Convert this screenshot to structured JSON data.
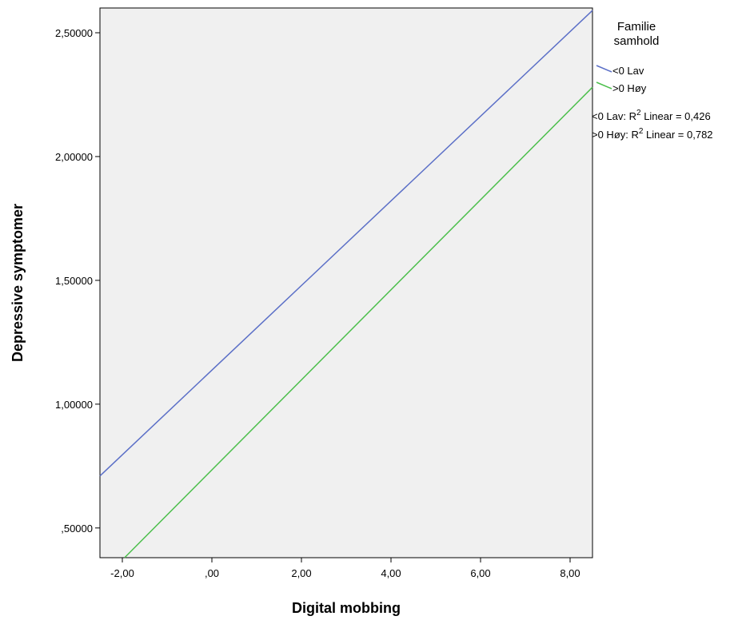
{
  "chart_data": {
    "type": "line",
    "xlabel": "Digital mobbing",
    "ylabel": "Depressive symptomer",
    "xlim": [
      -2.5,
      8.5
    ],
    "ylim": [
      0.38,
      2.6
    ],
    "x_ticks": [
      -2,
      0,
      2,
      4,
      6,
      8
    ],
    "x_tick_labels": [
      "-2,00",
      ",00",
      "2,00",
      "4,00",
      "6,00",
      "8,00"
    ],
    "y_ticks": [
      0.5,
      1.0,
      1.5,
      2.0,
      2.5
    ],
    "y_tick_labels": [
      ",50000",
      "1,00000",
      "1,50000",
      "2,00000",
      "2,50000"
    ],
    "grid": false,
    "legend": {
      "placement": "right",
      "title_line1": "Familie",
      "title_line2": "samhold"
    },
    "series": [
      {
        "name": "<0 Lav",
        "color": "#5b6fc7",
        "x": [
          -2.5,
          8.5
        ],
        "y": [
          0.71,
          2.59
        ],
        "fit_prefix": "<0 Lav: R",
        "fit_suffix": " Linear = 0,426"
      },
      {
        "name": ">0 Høy",
        "color": "#4cbf4c",
        "x": [
          -1.95,
          8.5
        ],
        "y": [
          0.38,
          2.28
        ],
        "fit_prefix": ">0 Høy: R",
        "fit_suffix": " Linear = 0,782"
      }
    ],
    "r2_superscript": "2"
  }
}
